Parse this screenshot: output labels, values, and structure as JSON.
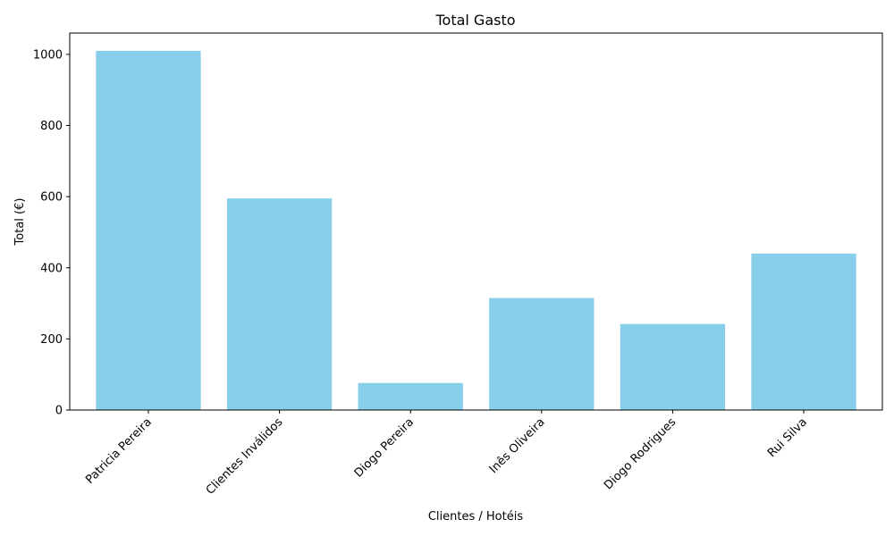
{
  "chart_data": {
    "type": "bar",
    "title": "Total Gasto",
    "xlabel": "Clientes / Hotéis",
    "ylabel": "Total (€)",
    "categories": [
      "Patricia Pereira",
      "Clientes Inválidos",
      "Diogo Pereira",
      "Inês Oliveira",
      "Diogo Rodrigues",
      "Rui Silva"
    ],
    "values": [
      1010,
      595,
      76,
      315,
      242,
      440
    ],
    "ylim": [
      0,
      1060
    ],
    "yticks": [
      0,
      200,
      400,
      600,
      800,
      1000
    ],
    "bar_color": "#87ceeb",
    "grid": false
  }
}
